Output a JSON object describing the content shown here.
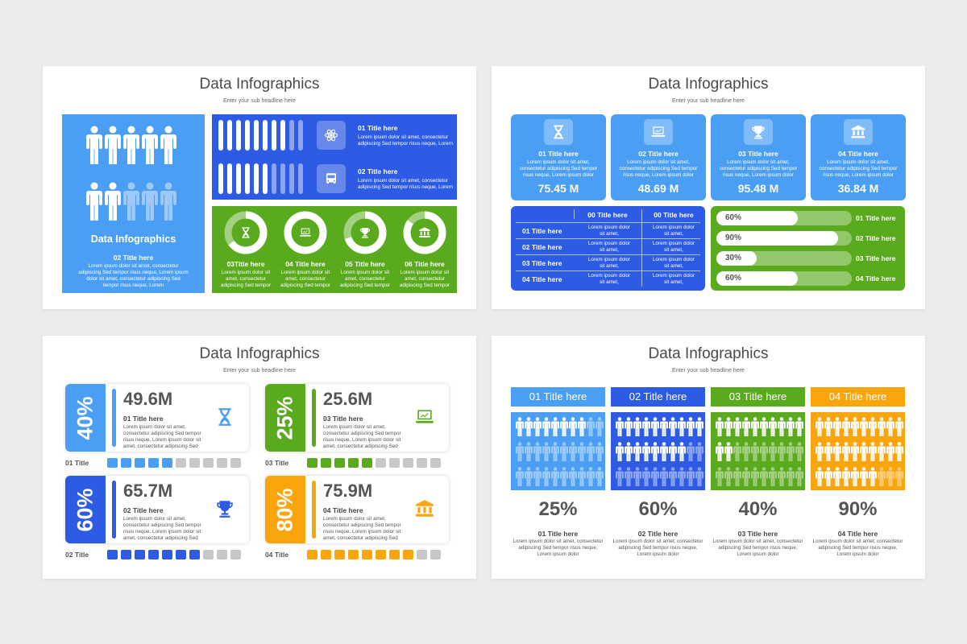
{
  "colors": {
    "light_blue": "#4a9ff5",
    "blue": "#2d5be3",
    "green": "#5aaa1e",
    "orange": "#f9a50b",
    "gray": "#c8c8c8",
    "text": "#4a4a4a"
  },
  "slide1": {
    "title": "Data Infographics",
    "subtitle": "Enter your sub headline here",
    "left": {
      "title": "Data Infographics",
      "item_title": "02 Title here",
      "desc": "Lorem ipsum dolor sit amet, consectetur adipiscing Sed tempor risus neque, Lorem ipsum dolor sit amet, consectetur adipiscing Sed tempor risus neque, Lorem",
      "people_top_filled": 5,
      "people_bottom_filled": 2,
      "people_per_row": 5
    },
    "bars": [
      {
        "title": "01 Title here",
        "desc": "Lorem ipsum dolor sit amet, consectetur adipiscing Sed tempor risus neque, Lorem",
        "icon": "atom-icon",
        "filled": 8,
        "total": 10
      },
      {
        "title": "02 Title here",
        "desc": "Lorem ipsum dolor sit amet, consectetur adipiscing Sed tempor risus neque, Lorem",
        "icon": "bus-icon",
        "filled": 6,
        "total": 10
      }
    ],
    "donuts": [
      {
        "title": "03Title here",
        "desc": "Lorem ipsum dolor sit amet, consectetur adipiscing Sed tempor",
        "icon": "hourglass-icon",
        "value": 0.65
      },
      {
        "title": "04 Title here",
        "desc": "Lorem ipsum dolor sit amet, consectetur adipiscing Sed tempor",
        "icon": "laptop-icon",
        "value": 1.0
      },
      {
        "title": "05 Title here",
        "desc": "Lorem ipsum dolor sit amet, consectetur adipiscing Sed tempor",
        "icon": "trophy-icon",
        "value": 0.7
      },
      {
        "title": "06 Title here",
        "desc": "Lorem ipsum dolor sit amet, consectetur adipiscing Sed tempor",
        "icon": "bank-icon",
        "value": 0.85
      }
    ]
  },
  "slide2": {
    "title": "Data Infographics",
    "subtitle": "Enter your sub headline here",
    "cards": [
      {
        "title": "01 Title here",
        "desc": "Lorem ipsum dolor sit amet, consectetur adipiscing Sed tempor risus neque, Lorem ipsum dolor",
        "value": "75.45 M",
        "icon": "hourglass-icon"
      },
      {
        "title": "02 Title here",
        "desc": "Lorem ipsum dolor sit amet, consectetur adipiscing Sed tempor risus neque, Lorem ipsum dolor",
        "value": "48.69 M",
        "icon": "laptop-icon"
      },
      {
        "title": "03 Title here",
        "desc": "Lorem ipsum dolor sit amet, consectetur adipiscing Sed tempor risus neque, Lorem ipsum dolor",
        "value": "95.48 M",
        "icon": "trophy-icon"
      },
      {
        "title": "04 Title here",
        "desc": "Lorem ipsum dolor sit amet, consectetur adipiscing Sed tempor risus neque, Lorem ipsum dolor",
        "value": "36.84 M",
        "icon": "bank-icon"
      }
    ],
    "table": {
      "headers": [
        "00 Title here",
        "00 Title here"
      ],
      "rows": [
        {
          "label": "01 Title here",
          "c1": "Lorem ipsum dolor sit amet,",
          "c2": "Lorem ipsum dolor sit amet,"
        },
        {
          "label": "02 Title here",
          "c1": "Lorem ipsum dolor sit amet,",
          "c2": "Lorem ipsum dolor sit amet,"
        },
        {
          "label": "03 Title here",
          "c1": "Lorem ipsum dolor sit amet,",
          "c2": "Lorem ipsum dolor sit amet,"
        },
        {
          "label": "04 Title here",
          "c1": "Lorem ipsum dolor sit amet,",
          "c2": "Lorem ipsum dolor sit amet,"
        }
      ]
    },
    "progress": [
      {
        "pct": "60%",
        "value": 0.6,
        "label": "01 Title here"
      },
      {
        "pct": "90%",
        "value": 0.9,
        "label": "02 Title here"
      },
      {
        "pct": "30%",
        "value": 0.3,
        "label": "03 Title here"
      },
      {
        "pct": "60%",
        "value": 0.6,
        "label": "04 Title here"
      }
    ]
  },
  "slide3": {
    "title": "Data Infographics",
    "subtitle": "Enter your sub headline here",
    "kpis": [
      {
        "pct": "40%",
        "value": "49.6M",
        "title": "01 Title here",
        "desc": "Lorem ipsum dolor sit amet, consectetur adipiscing Sed tempor risus neque, Lorem ipsum dolor sit amet, consectetur adipiscing Sed tempor risus neque,",
        "icon": "hourglass-icon",
        "color": "#4a9ff5",
        "row_label": "01 Title",
        "filled": 5,
        "total": 10
      },
      {
        "pct": "25%",
        "value": "25.6M",
        "title": "03 Title here",
        "desc": "Lorem ipsum dolor sit amet, consectetur adipiscing Sed tempor risus neque, Lorem ipsum dolor sit amet, consectetur adipiscing Sed tempor risus neque,",
        "icon": "laptop-icon",
        "color": "#5aaa1e",
        "row_label": "03 Title",
        "filled": 5,
        "total": 10
      },
      {
        "pct": "60%",
        "value": "65.7M",
        "title": "02 Title here",
        "desc": "Lorem ipsum dolor sit amet, consectetur adipiscing Sed tempor risus neque, Lorem ipsum dolor sit amet, consectetur adipiscing Sed tempor risus neque,",
        "icon": "trophy-icon",
        "color": "#2d5be3",
        "row_label": "02 Title",
        "filled": 7,
        "total": 10
      },
      {
        "pct": "80%",
        "value": "75.9M",
        "title": "04 Title here",
        "desc": "Lorem ipsum dolor sit amet, consectetur adipiscing Sed tempor risus neque, Lorem ipsum dolor sit amet, consectetur adipiscing Sed tempor risus neque,",
        "icon": "bank-icon",
        "color": "#f9a50b",
        "row_label": "04 Title",
        "filled": 8,
        "total": 10
      }
    ]
  },
  "slide4": {
    "title": "Data Infographics",
    "subtitle": "Enter your sub headline here",
    "columns": [
      {
        "header": "01 Title here",
        "pct": "25%",
        "filled": 0.25,
        "title": "01 Title here",
        "desc": "Lorem ipsum dolor sit amet, consectetur adipiscing Sed tempor risus neque, Lorem ipsum dolor",
        "color": "#4a9ff5"
      },
      {
        "header": "02 Title here",
        "pct": "60%",
        "filled": 0.6,
        "title": "02 Title here",
        "desc": "Lorem ipsum dolor sit amet, consectetur adipiscing Sed tempor risus neque, Lorem ipsum dolor",
        "color": "#2d5be3"
      },
      {
        "header": "03 Title here",
        "pct": "40%",
        "filled": 0.4,
        "title": "03 Title here",
        "desc": "Lorem ipsum dolor sit amet, consectetur adipiscing Sed tempor risus neque, Lorem ipsum dolor",
        "color": "#5aaa1e"
      },
      {
        "header": "04 Title here",
        "pct": "90%",
        "filled": 0.9,
        "title": "04 Title here",
        "desc": "Lorem ipsum dolor sit amet, consectetur adipiscing Sed tempor risus neque, Lorem ipsum dolor",
        "color": "#f9a50b"
      }
    ]
  }
}
